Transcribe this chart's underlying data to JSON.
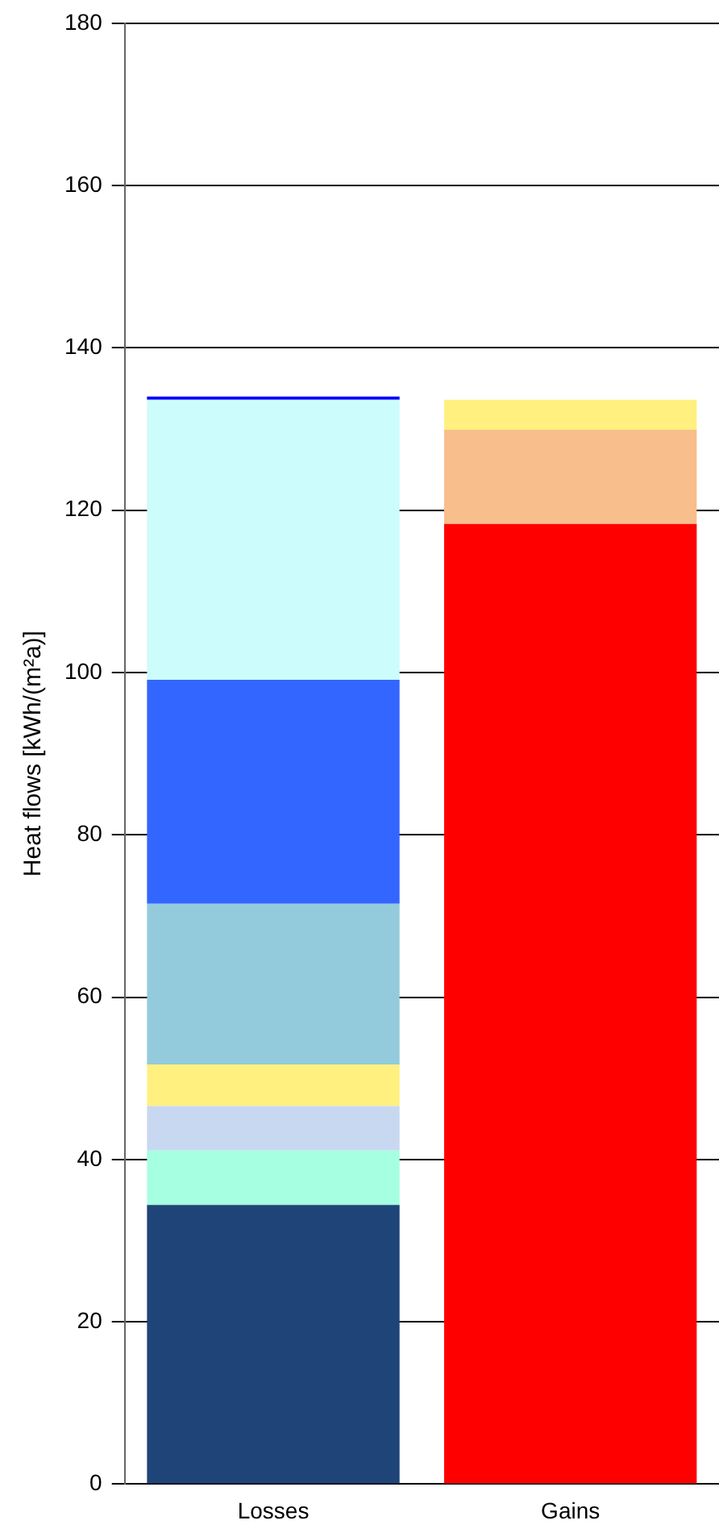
{
  "chart_data": {
    "type": "bar",
    "stacked": true,
    "ylabel": "Heat flows [kWh/(m²a)]",
    "categories": [
      "Losses",
      "Gains"
    ],
    "ylim": [
      0,
      180
    ],
    "yticks": [
      0,
      20,
      40,
      60,
      80,
      100,
      120,
      140,
      160,
      180
    ],
    "grid": "y",
    "legend": false,
    "series": [
      {
        "color": "#1f4478",
        "values": [
          34.4,
          null
        ]
      },
      {
        "color": "#a6ffe0",
        "values": [
          6.7,
          null
        ]
      },
      {
        "color": "#c8d8f0",
        "values": [
          5.5,
          null
        ]
      },
      {
        "color": "#fff080",
        "values": [
          5.1,
          null
        ]
      },
      {
        "color": "#94cbdc",
        "values": [
          19.8,
          null
        ]
      },
      {
        "color": "#3366ff",
        "values": [
          27.6,
          null
        ]
      },
      {
        "color": "#ccfcfc",
        "values": [
          34.5,
          null
        ]
      },
      {
        "color": "#0000ff",
        "values": [
          0.4,
          null
        ]
      },
      {
        "color": "#ff0000",
        "values": [
          null,
          118.3
        ]
      },
      {
        "color": "#f8be8c",
        "values": [
          null,
          11.6
        ]
      },
      {
        "color": "#fff080",
        "values": [
          null,
          3.7
        ]
      }
    ]
  }
}
